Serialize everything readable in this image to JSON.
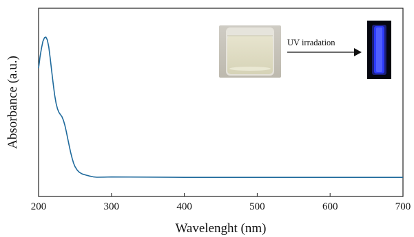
{
  "chart_data": {
    "type": "line",
    "title": "",
    "xlabel": "Wavelenght (nm)",
    "ylabel": "Absorbance (a.u.)",
    "xlim": [
      200,
      700
    ],
    "x_ticks": [
      200,
      300,
      400,
      500,
      600,
      700
    ],
    "y_ticks_shown": false,
    "grid": false,
    "legend": "none",
    "series": [
      {
        "color": "#1f6a9c",
        "points": [
          [
            200,
            0.78
          ],
          [
            201,
            0.82
          ],
          [
            202,
            0.86
          ],
          [
            204,
            0.92
          ],
          [
            206,
            0.97
          ],
          [
            208,
            0.995
          ],
          [
            210,
            1.0
          ],
          [
            212,
            0.98
          ],
          [
            214,
            0.93
          ],
          [
            216,
            0.85
          ],
          [
            218,
            0.76
          ],
          [
            220,
            0.67
          ],
          [
            222,
            0.59
          ],
          [
            224,
            0.53
          ],
          [
            226,
            0.49
          ],
          [
            228,
            0.465
          ],
          [
            230,
            0.45
          ],
          [
            232,
            0.435
          ],
          [
            234,
            0.41
          ],
          [
            236,
            0.375
          ],
          [
            238,
            0.33
          ],
          [
            240,
            0.28
          ],
          [
            242,
            0.23
          ],
          [
            244,
            0.18
          ],
          [
            246,
            0.14
          ],
          [
            248,
            0.105
          ],
          [
            250,
            0.08
          ],
          [
            253,
            0.055
          ],
          [
            256,
            0.04
          ],
          [
            260,
            0.028
          ],
          [
            265,
            0.02
          ],
          [
            270,
            0.013
          ],
          [
            275,
            0.008
          ],
          [
            280,
            0.005
          ],
          [
            290,
            0.006
          ],
          [
            300,
            0.007
          ],
          [
            350,
            0.006
          ],
          [
            400,
            0.004
          ],
          [
            450,
            0.004
          ],
          [
            500,
            0.004
          ],
          [
            550,
            0.004
          ],
          [
            600,
            0.004
          ],
          [
            650,
            0.004
          ],
          [
            700,
            0.004
          ]
        ]
      }
    ]
  },
  "inset": {
    "annotation": "UV irradation",
    "vial_glow_color": "#2d3cff"
  }
}
